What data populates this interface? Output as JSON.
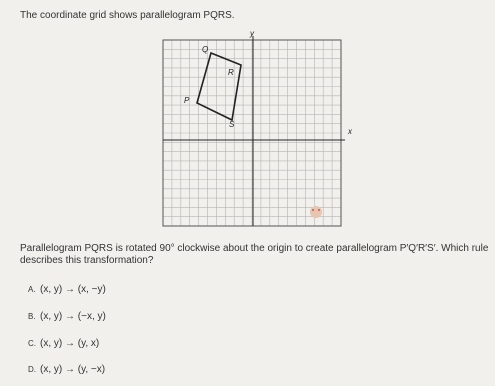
{
  "prompt": "The coordinate grid shows parallelogram PQRS.",
  "grid": {
    "x_axis_label": "x",
    "y_axis_label": "y",
    "vertices": [
      "Q",
      "R",
      "P",
      "S"
    ]
  },
  "question": "Parallelogram PQRS is rotated 90° clockwise about the origin to create parallelogram P′Q′R′S′. Which rule describes this transformation?",
  "options": [
    {
      "letter": "A.",
      "text": "(x, y) → (x, −y)"
    },
    {
      "letter": "B.",
      "text": "(x, y) → (−x, y)"
    },
    {
      "letter": "C.",
      "text": "(x, y) → (y, x)"
    },
    {
      "letter": "D.",
      "text": "(x, y) → (y, −x)"
    }
  ]
}
